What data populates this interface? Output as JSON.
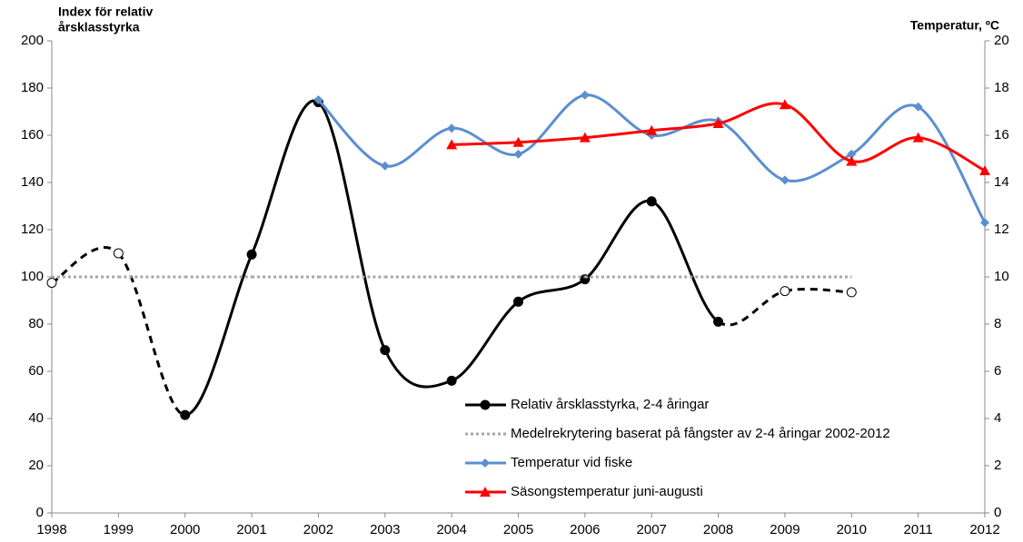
{
  "chart_data": {
    "type": "line",
    "y_title_lines": [
      "Index för relativ",
      "årsklasstyrka"
    ],
    "y2_title": "Temperatur, ºC",
    "categories": [
      "1998",
      "1999",
      "2000",
      "2001",
      "2002",
      "2003",
      "2004",
      "2005",
      "2006",
      "2007",
      "2008",
      "2009",
      "2010",
      "2011",
      "2012"
    ],
    "ylim": [
      0,
      200
    ],
    "yticks": [
      0,
      20,
      40,
      60,
      80,
      100,
      120,
      140,
      160,
      180,
      200
    ],
    "y2lim": [
      0,
      20
    ],
    "y2ticks": [
      0,
      2,
      4,
      6,
      8,
      10,
      12,
      14,
      16,
      18,
      20
    ],
    "smooth": true,
    "series": [
      {
        "name": "Relativ årsklasstyrka, 2-4 åringar",
        "color": "#000000",
        "marker": "circle",
        "line": "solid",
        "values": [
          97.5,
          110,
          41.5,
          109.5,
          174,
          69,
          56,
          89.5,
          99,
          132,
          81,
          94,
          93.5,
          null,
          null
        ],
        "hollow": [
          true,
          true,
          false,
          false,
          false,
          false,
          false,
          false,
          false,
          false,
          false,
          true,
          true,
          false,
          false
        ]
      },
      {
        "name": "Medelrekrytering baserat på fångster av 2-4 åringar 2002-2012",
        "color": "#a6a6a6",
        "marker": "none",
        "line": "dotted",
        "values": [
          100,
          100,
          100,
          100,
          100,
          100,
          100,
          100,
          100,
          100,
          100,
          100,
          100,
          null,
          null
        ]
      },
      {
        "name": "Temperatur vid fiske",
        "color": "#5b8fd0",
        "marker": "diamond",
        "line": "solid",
        "axis": "y2",
        "values": [
          null,
          null,
          null,
          null,
          17.5,
          14.7,
          16.3,
          15.2,
          17.7,
          16.0,
          16.6,
          14.1,
          15.2,
          17.2,
          12.3
        ]
      },
      {
        "name": "Säsongstemperatur juni-augusti",
        "color": "#ff0000",
        "marker": "triangle",
        "line": "solid",
        "axis": "y2",
        "values": [
          null,
          null,
          null,
          null,
          null,
          null,
          15.6,
          15.7,
          15.9,
          16.2,
          16.5,
          17.3,
          14.9,
          15.9,
          14.5
        ]
      }
    ]
  }
}
